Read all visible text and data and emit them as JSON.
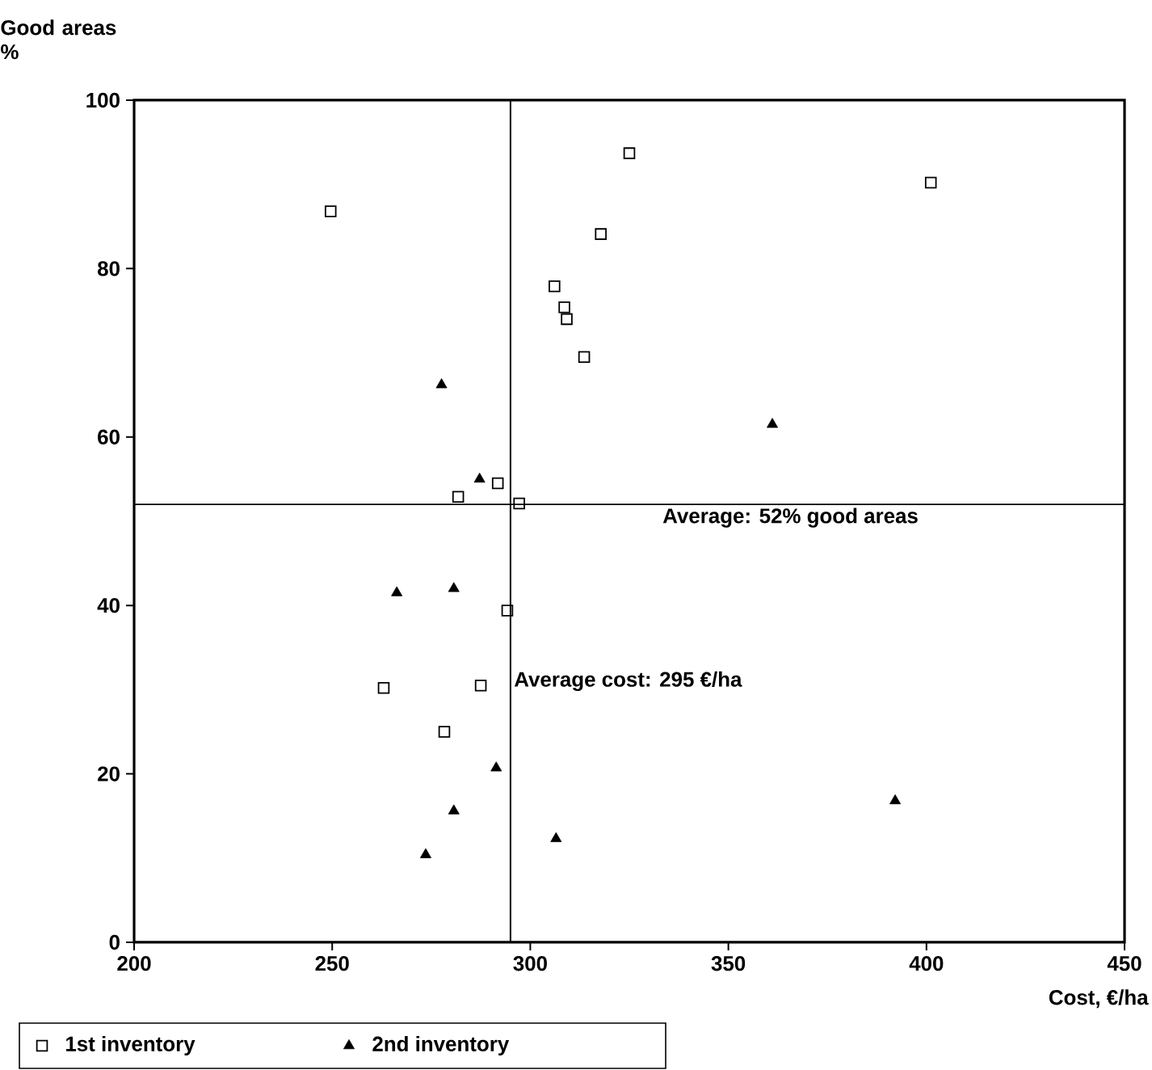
{
  "chart_data": {
    "type": "scatter",
    "xlabel": "Cost, €/ha",
    "ylabel": "Good areas %",
    "xlim": [
      200,
      450
    ],
    "ylim": [
      0,
      100
    ],
    "xticks": [
      200,
      250,
      300,
      350,
      400,
      450
    ],
    "yticks": [
      0,
      20,
      40,
      60,
      80,
      100
    ],
    "grid": false,
    "legend": "bottom left",
    "series": [
      {
        "name": "1st inventory",
        "color": "#000000",
        "marker": "square",
        "x": [
          249.6,
          325,
          317.8,
          306.1,
          308.6,
          309.2,
          313.6,
          281.8,
          291.8,
          297.2,
          401.1,
          294.2,
          263,
          287.5,
          278.3
        ],
        "values": [
          86.8,
          93.7,
          84.1,
          77.9,
          75.4,
          74.0,
          69.5,
          52.9,
          54.5,
          52.1,
          90.2,
          39.4,
          30.2,
          30.5,
          25.0
        ]
      },
      {
        "name": "2nd inventory",
        "color": "#000000",
        "marker": "triangle",
        "x": [
          277.6,
          287.2,
          266.3,
          280.7,
          291.4,
          280.7,
          273.6,
          306.5,
          361.1,
          392.1
        ],
        "values": [
          66.2,
          55.0,
          41.5,
          42.0,
          20.7,
          15.6,
          10.4,
          12.3,
          61.5,
          16.8
        ]
      }
    ],
    "ref_lines": [
      {
        "axis": "y",
        "value": 52,
        "label": "Average: 52% good areas"
      },
      {
        "axis": "x",
        "value": 295,
        "label": "Average cost: 295 €/ha"
      }
    ]
  }
}
